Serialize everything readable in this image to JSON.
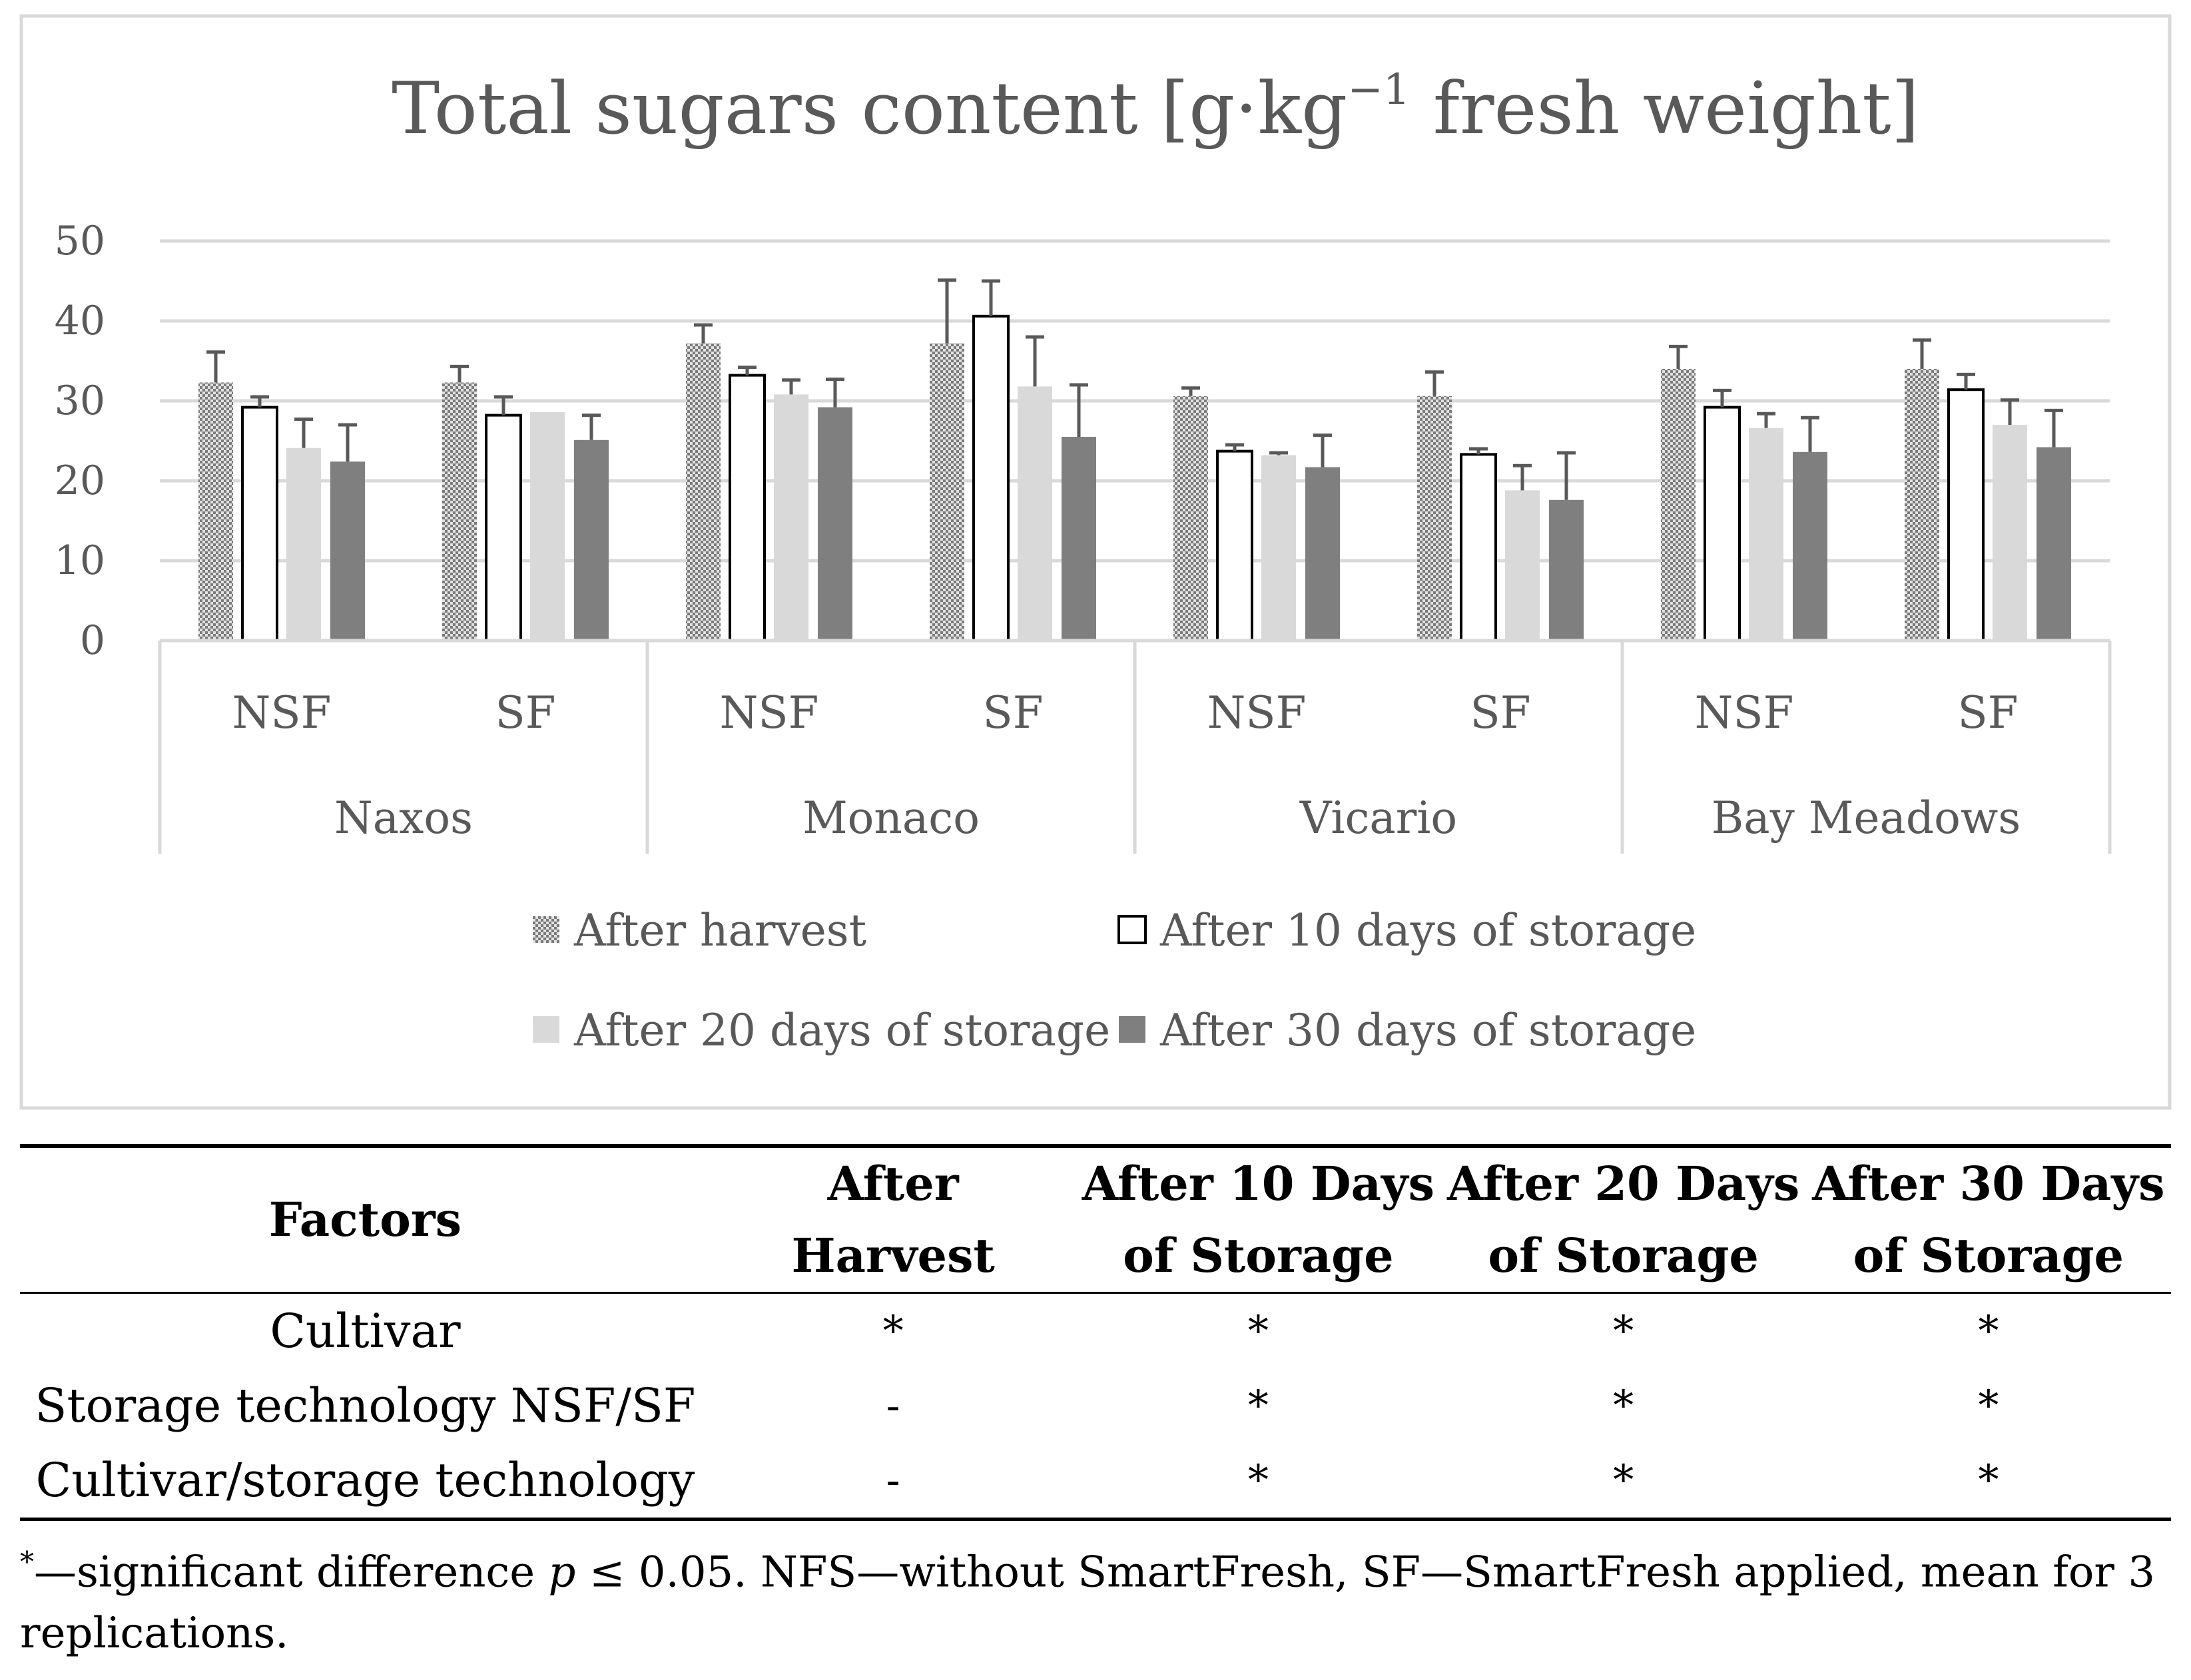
{
  "chart_data": {
    "type": "bar",
    "title_main": "Total sugars content [g·kg",
    "title_sup": "−1",
    "title_end": " fresh weight]",
    "ylim": [
      0,
      50
    ],
    "yticks": [
      0,
      10,
      20,
      30,
      40,
      50
    ],
    "groups": [
      {
        "name": "Naxos",
        "subgroups": [
          "NSF",
          "SF"
        ]
      },
      {
        "name": "Monaco",
        "subgroups": [
          "NSF",
          "SF"
        ]
      },
      {
        "name": "Vicario",
        "subgroups": [
          "NSF",
          "SF"
        ]
      },
      {
        "name": "Bay Meadows",
        "subgroups": [
          "NSF",
          "SF"
        ]
      }
    ],
    "categories": [
      "Naxos NSF",
      "Naxos SF",
      "Monaco NSF",
      "Monaco SF",
      "Vicario NSF",
      "Vicario SF",
      "Bay Meadows NSF",
      "Bay Meadows SF"
    ],
    "series": [
      {
        "name": "After harvest",
        "style": "checker",
        "color": "#9a9a9a",
        "values": [
          32.3,
          32.3,
          37.2,
          37.2,
          30.6,
          30.6,
          34.0,
          34.0
        ],
        "errors": [
          3.8,
          2.0,
          2.3,
          7.9,
          1.0,
          3.0,
          2.8,
          3.6
        ]
      },
      {
        "name": "After 10 days of storage",
        "style": "outline",
        "color": "#ffffff",
        "values": [
          29.2,
          28.2,
          33.2,
          40.6,
          23.7,
          23.3,
          29.2,
          31.4
        ],
        "errors": [
          1.3,
          2.3,
          1.0,
          4.4,
          0.8,
          0.7,
          2.1,
          1.9
        ]
      },
      {
        "name": "After 20 days of storage",
        "style": "light",
        "color": "#d9d9d9",
        "values": [
          24.1,
          28.6,
          30.8,
          31.8,
          23.2,
          18.8,
          26.6,
          27.0
        ],
        "errors": [
          3.6,
          0.0,
          1.8,
          6.2,
          0.3,
          3.1,
          1.8,
          3.1
        ]
      },
      {
        "name": "After 30 days of storage",
        "style": "dark",
        "color": "#7f7f7f",
        "values": [
          22.4,
          25.1,
          29.2,
          25.5,
          21.7,
          17.6,
          23.6,
          24.2
        ],
        "errors": [
          4.6,
          3.1,
          3.5,
          6.5,
          4.0,
          5.9,
          4.3,
          4.6
        ]
      }
    ]
  },
  "table": {
    "headers": [
      [
        "Factors"
      ],
      [
        "After",
        "Harvest"
      ],
      [
        "After 10 Days",
        "of Storage"
      ],
      [
        "After 20 Days",
        "of Storage"
      ],
      [
        "After 30 Days",
        "of Storage"
      ]
    ],
    "rows": [
      {
        "factor": "Cultivar",
        "values": [
          "*",
          "*",
          "*",
          "*"
        ]
      },
      {
        "factor": "Storage technology NSF/SF",
        "values": [
          "-",
          "*",
          "*",
          "*"
        ]
      },
      {
        "factor": "Cultivar/storage technology",
        "values": [
          "-",
          "*",
          "*",
          "*"
        ]
      }
    ],
    "note_symbol": "*",
    "note_pre": "—significant difference ",
    "note_var": "p",
    "note_post": " ≤ 0.05. NFS—without SmartFresh, SF—SmartFresh applied, mean for 3 replications."
  }
}
